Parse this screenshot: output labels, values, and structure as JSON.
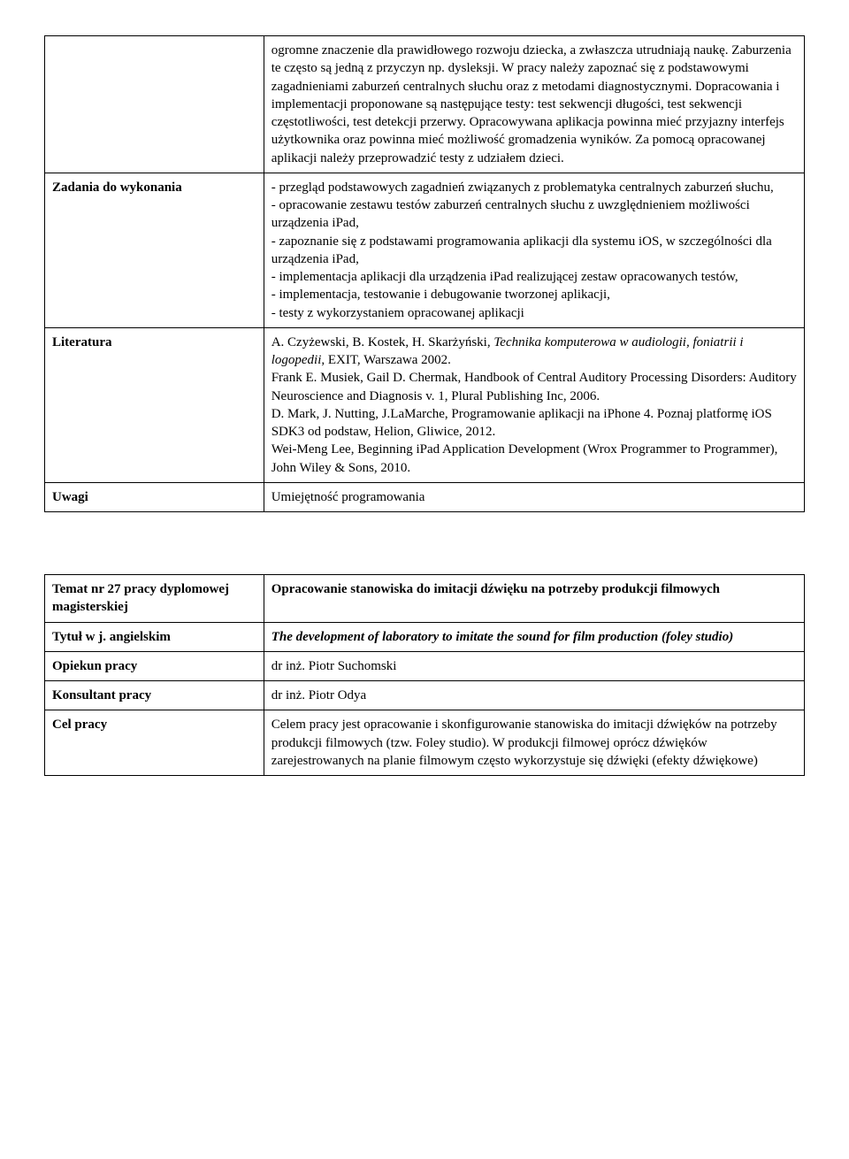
{
  "table1": {
    "row1": {
      "label": "",
      "content": "ogromne znaczenie dla prawidłowego rozwoju dziecka, a zwłaszcza utrudniają naukę. Zaburzenia te często są jedną z przyczyn np. dysleksji. W pracy należy zapoznać się z podstawowymi zagadnieniami zaburzeń centralnych słuchu oraz z metodami diagnostycznymi. Dopracowania i implementacji proponowane są następujące testy: test sekwencji długości, test sekwencji częstotliwości, test detekcji przerwy. Opracowywana aplikacja powinna mieć przyjazny interfejs użytkownika oraz powinna mieć możliwość gromadzenia wyników. Za pomocą opracowanej aplikacji należy przeprowadzić testy z udziałem dzieci."
    },
    "row2": {
      "label": "Zadania do wykonania",
      "content": "- przegląd podstawowych zagadnień związanych z problematyka centralnych zaburzeń słuchu,\n- opracowanie zestawu testów zaburzeń centralnych słuchu z uwzględnieniem możliwości urządzenia iPad,\n- zapoznanie się z podstawami programowania aplikacji dla systemu iOS, w szczególności dla urządzenia iPad,\n- implementacja aplikacji dla urządzenia iPad realizującej zestaw opracowanych testów,\n- implementacja, testowanie i debugowanie tworzonej aplikacji,\n- testy z wykorzystaniem opracowanej aplikacji"
    },
    "row3": {
      "label": "Literatura",
      "line1_a": "A. Czyżewski, B. Kostek, H. Skarżyński, ",
      "line1_i": "Technika komputerowa w audiologii, foniatrii i logopedii",
      "line1_b": ", EXIT, Warszawa 2002.",
      "line2": "Frank E. Musiek, Gail D. Chermak, Handbook of Central Auditory Processing Disorders: Auditory Neuroscience and Diagnosis v. 1, Plural Publishing Inc, 2006.",
      "line3": "D. Mark, J. Nutting, J.LaMarche, Programowanie aplikacji na iPhone 4. Poznaj platformę iOS SDK3 od podstaw, Helion, Gliwice, 2012.",
      "line4": "Wei-Meng Lee, Beginning iPad Application Development (Wrox Programmer to Programmer), John Wiley & Sons, 2010."
    },
    "row4": {
      "label": "Uwagi",
      "content": "Umiejętność programowania"
    }
  },
  "table2": {
    "row1": {
      "label": "Temat nr 27 pracy dyplomowej magisterskiej",
      "content": "Opracowanie stanowiska do imitacji dźwięku na potrzeby produkcji filmowych"
    },
    "row2": {
      "label": "Tytuł w j. angielskim",
      "content": "The development of laboratory to imitate the sound for film production (foley studio)"
    },
    "row3": {
      "label": "Opiekun pracy",
      "content": "dr inż. Piotr Suchomski"
    },
    "row4": {
      "label": "Konsultant pracy",
      "content": "dr inż. Piotr Odya"
    },
    "row5": {
      "label": "Cel pracy",
      "content": "Celem pracy jest opracowanie i skonfigurowanie stanowiska do imitacji dźwięków na potrzeby produkcji filmowych (tzw. Foley studio). W produkcji filmowej oprócz dźwięków zarejestrowanych na planie filmowym często wykorzystuje się dźwięki (efekty dźwiękowe)"
    }
  }
}
